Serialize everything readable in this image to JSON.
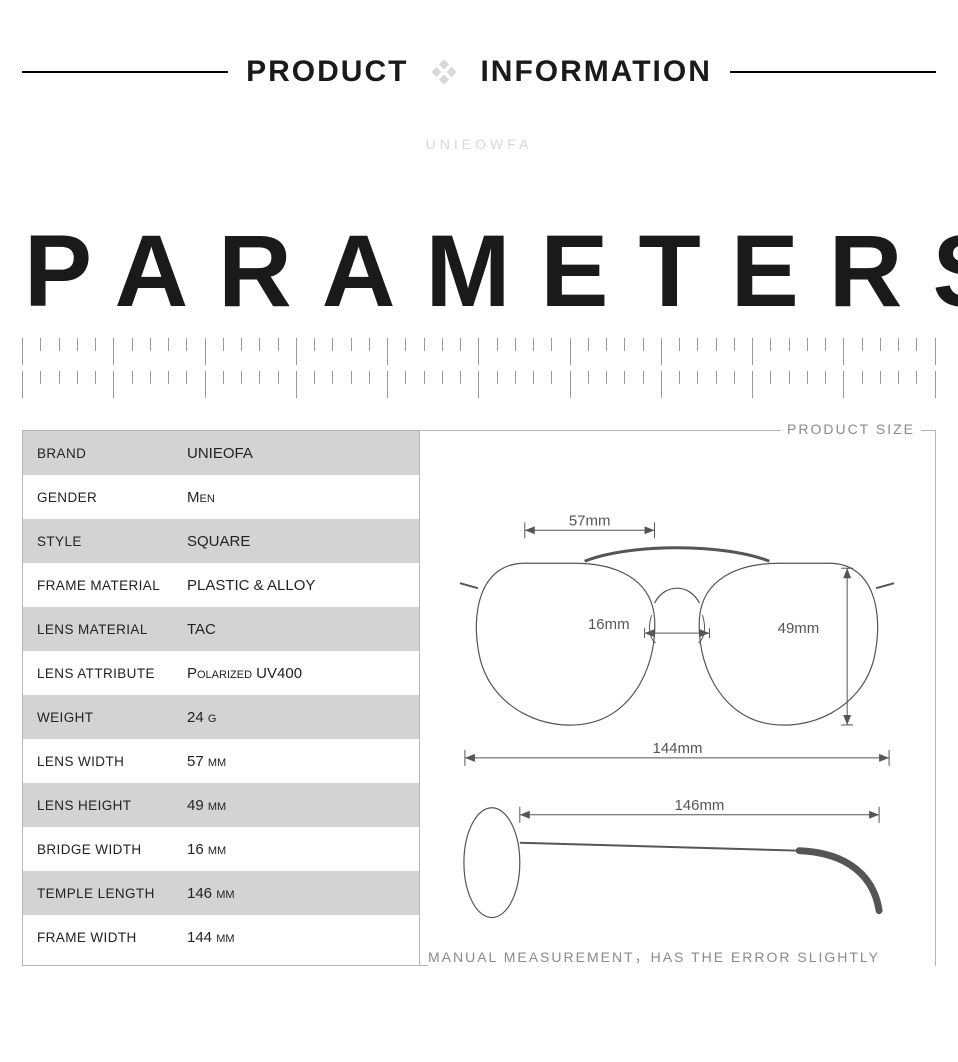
{
  "header": {
    "left": "PRODUCT",
    "right": "INFORMATION",
    "watermark": "UNIEOWFA"
  },
  "title": "PARAMETERS",
  "specs": [
    {
      "label": "BRAND",
      "value": "UNIEOFA"
    },
    {
      "label": "GENDER",
      "value": "Men"
    },
    {
      "label": "STYLE",
      "value": "SQUARE"
    },
    {
      "label": "FRAME MATERIAL",
      "value": "PLASTIC & ALLOY"
    },
    {
      "label": "LENS MATERIAL",
      "value": "TAC"
    },
    {
      "label": "LENS ATTRIBUTE",
      "value": "Polarized UV400"
    },
    {
      "label": "WEIGHT",
      "value": "24 g"
    },
    {
      "label": "LENS WIDTH",
      "value": "57 mm"
    },
    {
      "label": "LENS HEIGHT",
      "value": "49 mm"
    },
    {
      "label": "BRIDGE WIDTH",
      "value": "16 mm"
    },
    {
      "label": "TEMPLE LENGTH",
      "value": "146 mm"
    },
    {
      "label": "FRAME WIDTH",
      "value": "144 mm"
    }
  ],
  "diagram": {
    "title": "PRODUCT SIZE",
    "lens_width": "57mm",
    "bridge_width": "16mm",
    "lens_height": "49mm",
    "frame_width": "144mm",
    "temple_length": "146mm",
    "footnote": "MANUAL MEASUREMENT，HAS THE ERROR SLIGHTLY",
    "stroke": "#555555",
    "label_color": "#555555",
    "label_fontsize": 15
  },
  "ruler": {
    "major_ticks": 10,
    "minor_per_major": 5,
    "tick_color": "#999999"
  }
}
